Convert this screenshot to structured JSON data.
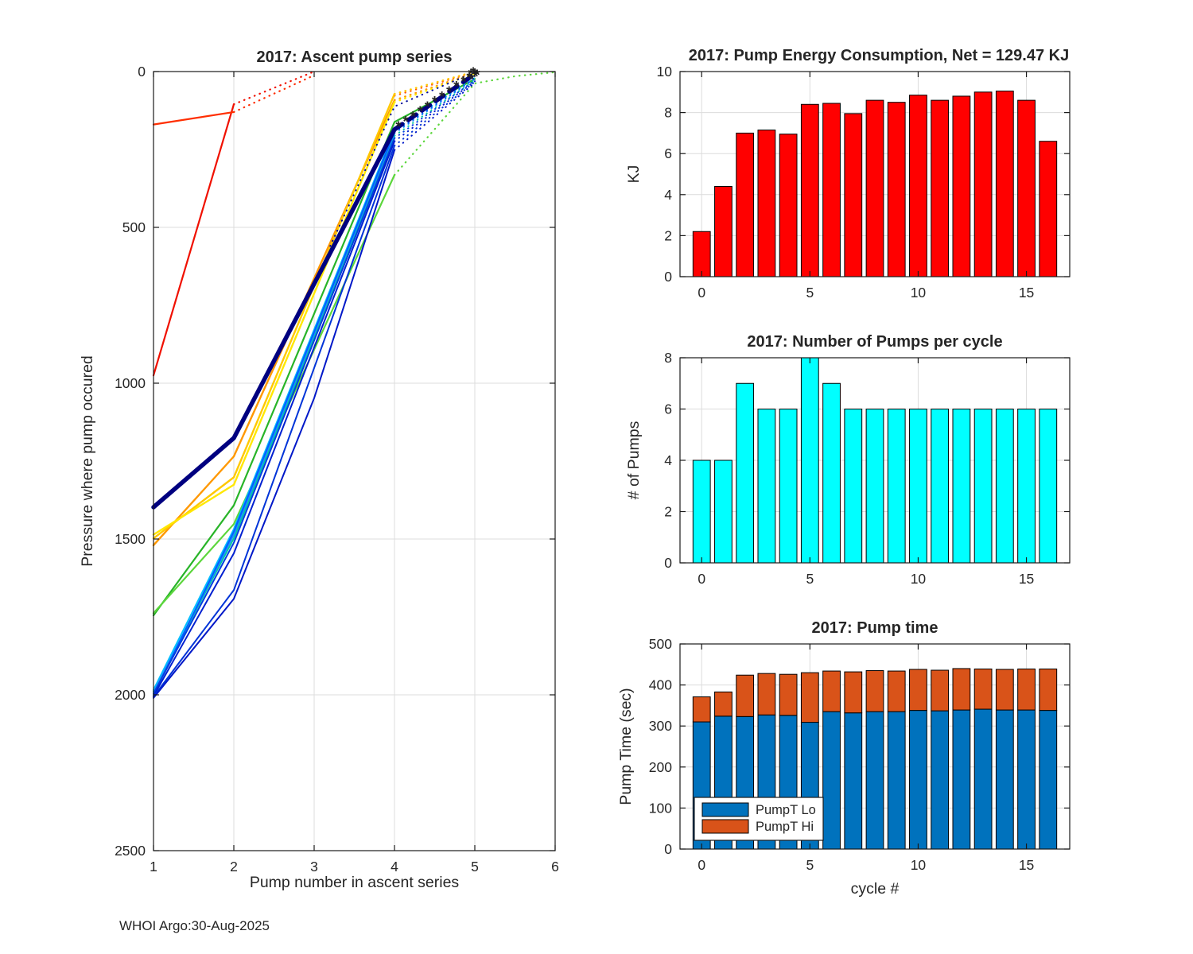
{
  "figure": {
    "footer": "WHOI Argo:30-Aug-2025"
  },
  "chart_data": [
    {
      "id": "ascent",
      "type": "line",
      "title": "2017: Ascent pump series",
      "xlabel": "Pump number in ascent series",
      "ylabel": "Pressure where pump occured",
      "xlim": [
        1,
        6
      ],
      "ylim": [
        0,
        2500
      ],
      "y_reversed": true,
      "grid": true,
      "xticks": [
        1,
        2,
        3,
        4,
        5,
        6
      ],
      "yticks": [
        0,
        500,
        1000,
        1500,
        2000,
        2500
      ],
      "series": [
        {
          "name": "cycle-0-red",
          "color": "#f01000",
          "width": 2.2,
          "segments": [
            {
              "style": "solid",
              "points": [
                [
                  1,
                  975
                ],
                [
                  2,
                  105
                ]
              ]
            },
            {
              "style": "dotted",
              "points": [
                [
                  2,
                  105
                ],
                [
                  3,
                  0
                ]
              ]
            }
          ]
        },
        {
          "name": "cycle-1-red",
          "color": "#ff2e00",
          "width": 2.2,
          "segments": [
            {
              "style": "solid",
              "points": [
                [
                  1,
                  170
                ],
                [
                  2,
                  130
                ]
              ]
            },
            {
              "style": "dotted",
              "points": [
                [
                  2,
                  130
                ],
                [
                  3,
                  12
                ]
              ]
            }
          ]
        },
        {
          "name": "cycle-2-orangered",
          "color": "#ff5200",
          "width": 2.0,
          "segments": [
            {
              "style": "dotted",
              "points": [
                [
                  4,
                  78
                ],
                [
                  5,
                  2
                ]
              ]
            }
          ]
        },
        {
          "name": "cycle-3-orange",
          "color": "#ff9800",
          "width": 2.4,
          "segments": [
            {
              "style": "solid",
              "points": [
                [
                  1,
                  1520
                ],
                [
                  2,
                  1235
                ],
                [
                  4,
                  92
                ]
              ]
            },
            {
              "style": "dotted",
              "points": [
                [
                  4,
                  92
                ],
                [
                  5,
                  4
                ]
              ]
            }
          ]
        },
        {
          "name": "cycle-4-gold",
          "color": "#ffc800",
          "width": 2.4,
          "segments": [
            {
              "style": "solid",
              "points": [
                [
                  1,
                  1498
                ],
                [
                  2,
                  1302
                ],
                [
                  4,
                  72
                ]
              ]
            },
            {
              "style": "dotted",
              "points": [
                [
                  4,
                  72
                ],
                [
                  5,
                  0
                ]
              ]
            }
          ]
        },
        {
          "name": "cycle-5-yellow",
          "color": "#ffe800",
          "width": 2.4,
          "segments": [
            {
              "style": "solid",
              "points": [
                [
                  1,
                  1486
                ],
                [
                  2,
                  1326
                ],
                [
                  4,
                  98
                ]
              ]
            },
            {
              "style": "dotted",
              "points": [
                [
                  4,
                  98
                ],
                [
                  5,
                  6
                ]
              ]
            }
          ]
        },
        {
          "name": "cycle-6-green",
          "color": "#28b428",
          "width": 2.2,
          "segments": [
            {
              "style": "solid",
              "points": [
                [
                  1,
                  1745
                ],
                [
                  2,
                  1392
                ],
                [
                  4,
                  162
                ],
                [
                  5,
                  24
                ]
              ]
            }
          ]
        },
        {
          "name": "cycle-7-lime",
          "color": "#5cd63c",
          "width": 2.2,
          "segments": [
            {
              "style": "solid",
              "points": [
                [
                  1,
                  1738
                ],
                [
                  2,
                  1452
                ],
                [
                  4,
                  332
                ]
              ]
            },
            {
              "style": "dotted",
              "points": [
                [
                  4,
                  332
                ],
                [
                  4.5,
                  185
                ],
                [
                  5,
                  38
                ],
                [
                  5.5,
                  15
                ],
                [
                  6,
                  2
                ]
              ]
            }
          ]
        },
        {
          "name": "cycle-8-teal",
          "color": "#00c9a0",
          "width": 2.0,
          "segments": [
            {
              "style": "solid",
              "points": [
                [
                  1,
                  1988
                ],
                [
                  2,
                  1498
                ],
                [
                  4,
                  206
                ]
              ]
            },
            {
              "style": "dotted",
              "points": [
                [
                  4,
                  206
                ],
                [
                  5,
                  28
                ]
              ]
            }
          ]
        },
        {
          "name": "cycle-9-skyblue",
          "color": "#00bfff",
          "width": 2.0,
          "segments": [
            {
              "style": "solid",
              "points": [
                [
                  1,
                  1984
                ],
                [
                  2,
                  1468
                ],
                [
                  4,
                  188
                ]
              ]
            },
            {
              "style": "dotted",
              "points": [
                [
                  4,
                  188
                ],
                [
                  5,
                  20
                ]
              ]
            }
          ]
        },
        {
          "name": "cycle-10-dodger",
          "color": "#1e90ff",
          "width": 2.0,
          "segments": [
            {
              "style": "solid",
              "points": [
                [
                  1,
                  1992
                ],
                [
                  2,
                  1486
                ],
                [
                  4,
                  198
                ]
              ]
            },
            {
              "style": "dotted",
              "points": [
                [
                  4,
                  198
                ],
                [
                  5,
                  24
                ]
              ]
            }
          ]
        },
        {
          "name": "cycle-11-blue",
          "color": "#0060ff",
          "width": 2.0,
          "segments": [
            {
              "style": "solid",
              "points": [
                [
                  1,
                  2000
                ],
                [
                  2,
                  1476
                ],
                [
                  4,
                  194
                ]
              ]
            },
            {
              "style": "dotted",
              "points": [
                [
                  4,
                  194
                ],
                [
                  5,
                  22
                ]
              ]
            }
          ]
        },
        {
          "name": "cycle-12-blue",
          "color": "#0040e0",
          "width": 2.0,
          "segments": [
            {
              "style": "solid",
              "points": [
                [
                  1,
                  1996
                ],
                [
                  2,
                  1512
                ],
                [
                  4,
                  214
                ]
              ]
            },
            {
              "style": "dotted",
              "points": [
                [
                  4,
                  214
                ],
                [
                  5,
                  28
                ]
              ]
            }
          ]
        },
        {
          "name": "cycle-13-blue",
          "color": "#0020d0",
          "width": 2.0,
          "segments": [
            {
              "style": "solid",
              "points": [
                [
                  1,
                  2004
                ],
                [
                  2,
                  1546
                ],
                [
                  4,
                  224
                ]
              ]
            },
            {
              "style": "dotted",
              "points": [
                [
                  4,
                  224
                ],
                [
                  5,
                  31
                ]
              ]
            }
          ]
        },
        {
          "name": "cycle-14-blue",
          "color": "#0034d8",
          "width": 2.0,
          "segments": [
            {
              "style": "solid",
              "points": [
                [
                  1,
                  2006
                ],
                [
                  2,
                  1664
                ],
                [
                  4,
                  238
                ]
              ]
            },
            {
              "style": "dotted",
              "points": [
                [
                  4,
                  238
                ],
                [
                  5,
                  33
                ]
              ]
            }
          ]
        },
        {
          "name": "cycle-15-blue",
          "color": "#0018c8",
          "width": 2.0,
          "segments": [
            {
              "style": "solid",
              "points": [
                [
                  1,
                  2010
                ],
                [
                  2,
                  1692
                ],
                [
                  3,
                  1048
                ],
                [
                  4,
                  252
                ]
              ]
            },
            {
              "style": "dotted",
              "points": [
                [
                  4,
                  252
                ],
                [
                  5,
                  36
                ]
              ]
            }
          ]
        },
        {
          "name": "cycle-16-navy-thin",
          "color": "#000a99",
          "width": 2.0,
          "segments": [
            {
              "style": "dotted",
              "points": [
                [
                  3.2,
                  560
                ],
                [
                  4,
                  112
                ],
                [
                  5,
                  2
                ]
              ]
            }
          ]
        },
        {
          "name": "mean-navy-thick",
          "color": "#000080",
          "width": 5.5,
          "segments": [
            {
              "style": "solid",
              "points": [
                [
                  1,
                  1398
                ],
                [
                  2,
                  1176
                ],
                [
                  4,
                  186
                ]
              ]
            },
            {
              "style": "dashed",
              "points": [
                [
                  4,
                  186
                ],
                [
                  5,
                  8
                ]
              ]
            }
          ]
        }
      ],
      "markers": {
        "symbol": "*",
        "color": "#000080",
        "points": [
          [
            4.05,
            177
          ],
          [
            4.14,
            161
          ],
          [
            4.23,
            145
          ],
          [
            4.32,
            129
          ],
          [
            4.41,
            113
          ],
          [
            4.5,
            97
          ],
          [
            4.59,
            81
          ],
          [
            4.68,
            65
          ],
          [
            4.77,
            49
          ],
          [
            4.86,
            33
          ],
          [
            4.93,
            21
          ],
          [
            5.0,
            8
          ],
          [
            4.96,
            26
          ],
          [
            5.01,
            17
          ],
          [
            4.98,
            4
          ],
          [
            5.03,
            12
          ],
          [
            4.95,
            9
          ]
        ]
      }
    },
    {
      "id": "energy",
      "type": "bar",
      "title": "2017: Pump Energy Consumption,  Net = 129.47 KJ",
      "xlabel": "",
      "ylabel": "KJ",
      "net_kj": 129.47,
      "cycles": [
        0,
        1,
        2,
        3,
        4,
        5,
        6,
        7,
        8,
        9,
        10,
        11,
        12,
        13,
        14,
        15,
        16
      ],
      "values": [
        2.2,
        4.4,
        7.0,
        7.15,
        6.95,
        8.4,
        8.45,
        7.95,
        8.6,
        8.5,
        8.85,
        8.6,
        8.8,
        9.0,
        9.05,
        8.6,
        6.6
      ],
      "bar_color": "#ff0000",
      "edge_color": "#000000",
      "ylim": [
        0,
        10
      ],
      "yticks": [
        0,
        2,
        4,
        6,
        8,
        10
      ],
      "xticks": [
        0,
        5,
        10,
        15
      ],
      "grid": true
    },
    {
      "id": "npumps",
      "type": "bar",
      "title": "2017: Number of Pumps per cycle",
      "xlabel": "",
      "ylabel": "# of Pumps",
      "cycles": [
        0,
        1,
        2,
        3,
        4,
        5,
        6,
        7,
        8,
        9,
        10,
        11,
        12,
        13,
        14,
        15,
        16
      ],
      "values": [
        4,
        4,
        7,
        6,
        6,
        8,
        7,
        6,
        6,
        6,
        6,
        6,
        6,
        6,
        6,
        6,
        6
      ],
      "bar_color": "#00ffff",
      "edge_color": "#000000",
      "ylim": [
        0,
        8
      ],
      "yticks": [
        0,
        2,
        4,
        6,
        8
      ],
      "xticks": [
        0,
        5,
        10,
        15
      ],
      "grid": true
    },
    {
      "id": "pumptime",
      "type": "stacked-bar",
      "title": "2017: Pump time",
      "xlabel": "cycle #",
      "ylabel": "Pump Time (sec)",
      "cycles": [
        0,
        1,
        2,
        3,
        4,
        5,
        6,
        7,
        8,
        9,
        10,
        11,
        12,
        13,
        14,
        15,
        16
      ],
      "series": [
        {
          "name": "PumpT Lo",
          "color": "#0072bd",
          "values": [
            310,
            324,
            323,
            327,
            326,
            309,
            335,
            332,
            335,
            335,
            338,
            337,
            339,
            341,
            339,
            339,
            338
          ]
        },
        {
          "name": "PumpT Hi",
          "color": "#d95319",
          "values": [
            61,
            59,
            101,
            101,
            100,
            121,
            99,
            100,
            100,
            99,
            100,
            99,
            101,
            98,
            99,
            100,
            101
          ]
        }
      ],
      "edge_color": "#000000",
      "ylim": [
        0,
        500
      ],
      "yticks": [
        0,
        100,
        200,
        300,
        400,
        500
      ],
      "xticks": [
        0,
        5,
        10,
        15
      ],
      "grid": true,
      "legend": {
        "position": "southwest",
        "labels": [
          "PumpT Lo",
          "PumpT Hi"
        ]
      }
    }
  ]
}
